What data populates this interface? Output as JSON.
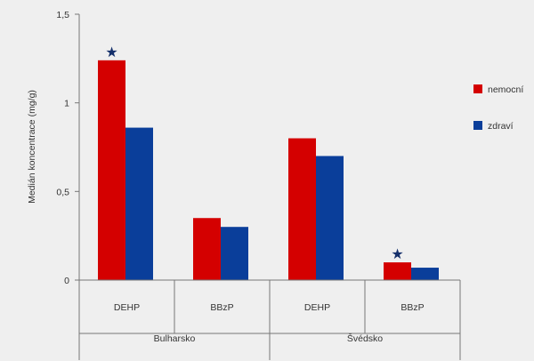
{
  "chart_data": {
    "type": "bar",
    "ylabel": "Medián koncentrace (mg/g)",
    "ylim": [
      0,
      1.5
    ],
    "yticks": [
      {
        "value": 0,
        "label": "0"
      },
      {
        "value": 0.5,
        "label": "0,5"
      },
      {
        "value": 1,
        "label": "1"
      },
      {
        "value": 1.5,
        "label": "1,5"
      }
    ],
    "groups": [
      "Bulharsko",
      "Švédsko"
    ],
    "categories": [
      {
        "label": "DEHP",
        "group": "Bulharsko"
      },
      {
        "label": "BBzP",
        "group": "Bulharsko"
      },
      {
        "label": "DEHP",
        "group": "Švédsko"
      },
      {
        "label": "BBzP",
        "group": "Švédsko"
      }
    ],
    "series": [
      {
        "name": "nemocní",
        "color": "#d40000",
        "values": [
          1.24,
          0.35,
          0.8,
          0.1
        ]
      },
      {
        "name": "zdraví",
        "color": "#0a3e9a",
        "values": [
          0.86,
          0.3,
          0.7,
          0.07
        ]
      }
    ],
    "significance_marks": [
      {
        "symbol": "★",
        "category_index": 0,
        "series_index": 0
      },
      {
        "symbol": "★",
        "category_index": 3,
        "series_index": 0
      }
    ],
    "star_color": "#15306b",
    "legend_position": "right",
    "grid": false
  }
}
